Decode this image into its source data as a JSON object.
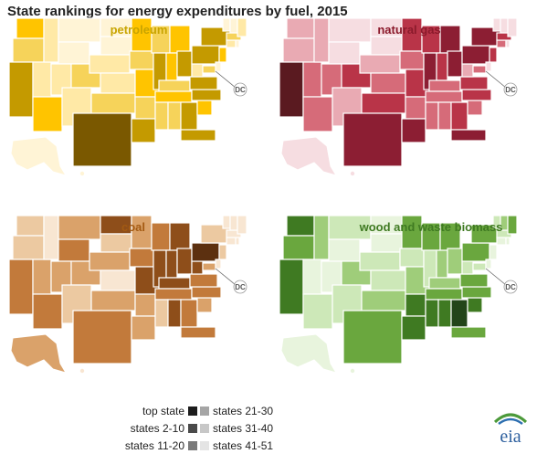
{
  "title": "State rankings for energy expenditures by fuel, 2015",
  "chart_data": [
    {
      "type": "choropleth-map",
      "title": "petroleum",
      "accent": "#c8a400",
      "shades": [
        "#7a5800",
        "#c49a00",
        "#ffc400",
        "#f6d35a",
        "#ffe9a6",
        "#fff4d6"
      ],
      "alaska_rank_group": "states 41-51"
    },
    {
      "type": "choropleth-map",
      "title": "natural gas",
      "accent": "#8b1a2b",
      "shades": [
        "#5a1a20",
        "#8c1e33",
        "#b93448",
        "#d66b79",
        "#e9aab3",
        "#f6dde1"
      ],
      "alaska_rank_group": "states 41-51"
    },
    {
      "type": "choropleth-map",
      "title": "coal",
      "accent": "#a35a12",
      "shades": [
        "#5c3010",
        "#8e4e1a",
        "#c27a3b",
        "#daa26a",
        "#ecc9a1",
        "#f8e6d2"
      ],
      "alaska_rank_group": "states 21-30"
    },
    {
      "type": "choropleth-map",
      "title": "wood and waste biomass",
      "accent": "#3f7a22",
      "shades": [
        "#23451a",
        "#3f7a22",
        "#6aa73e",
        "#9fcd7a",
        "#cde8b8",
        "#e8f4dd"
      ],
      "alaska_rank_group": "states 41-51"
    }
  ],
  "legend": {
    "left": [
      "top state",
      "states 2-10",
      "states 11-20"
    ],
    "right": [
      "states 21-30",
      "states 31-40",
      "states 41-51"
    ],
    "grays": [
      "#1c1c1c",
      "#4a4a4a",
      "#7a7a7a",
      "#a5a5a5",
      "#c7c7c7",
      "#e4e4e4"
    ]
  },
  "dc_label": "DC",
  "logo_text": "eia"
}
